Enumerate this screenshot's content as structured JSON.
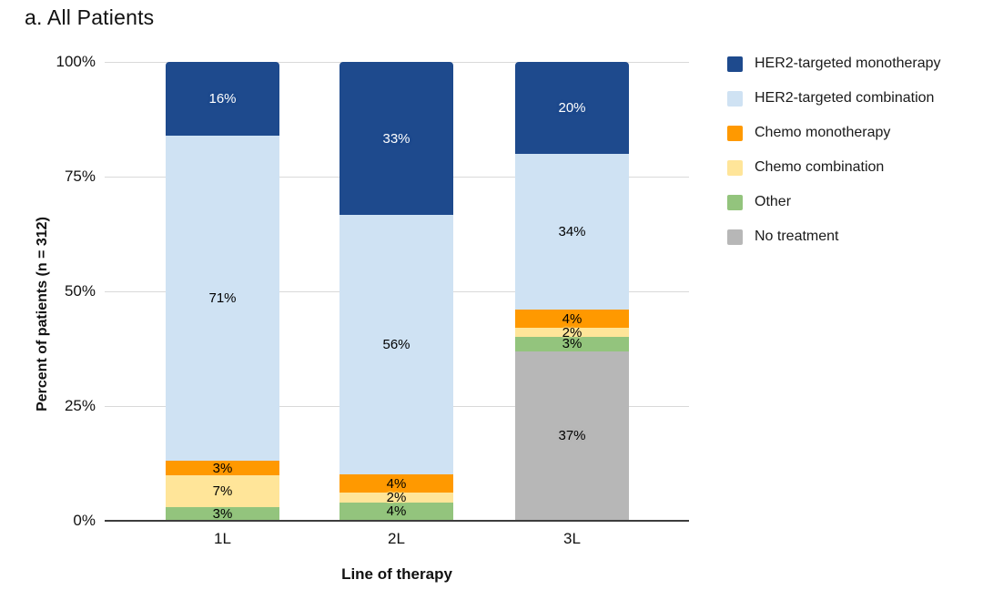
{
  "chart_data": {
    "type": "bar",
    "stacked": true,
    "title": "a. All Patients",
    "xlabel": "Line of therapy",
    "ylabel": "Percent of patients (n = 312)",
    "categories": [
      "1L",
      "2L",
      "3L"
    ],
    "series": [
      {
        "name": "HER2-targeted monotherapy",
        "color": "#1e4a8d",
        "label_color": "#ffffff",
        "values": [
          16,
          33,
          20
        ]
      },
      {
        "name": "HER2-targeted combination",
        "color": "#cfe2f3",
        "label_color": "#000000",
        "values": [
          71,
          56,
          34
        ]
      },
      {
        "name": "Chemo monotherapy",
        "color": "#ff9900",
        "label_color": "#000000",
        "values": [
          3,
          4,
          4
        ]
      },
      {
        "name": "Chemo combination",
        "color": "#ffe599",
        "label_color": "#000000",
        "values": [
          7,
          2,
          2
        ]
      },
      {
        "name": "Other",
        "color": "#93c47d",
        "label_color": "#000000",
        "values": [
          3,
          4,
          3
        ]
      },
      {
        "name": "No treatment",
        "color": "#b7b7b7",
        "label_color": "#000000",
        "values": [
          0,
          0,
          37
        ]
      }
    ],
    "value_suffix": "%",
    "ylim": [
      0,
      100
    ],
    "yticks": [
      {
        "value": 0,
        "label": "0%"
      },
      {
        "value": 25,
        "label": "25%"
      },
      {
        "value": 50,
        "label": "50%"
      },
      {
        "value": 75,
        "label": "75%"
      },
      {
        "value": 100,
        "label": "100%"
      }
    ],
    "grid": true,
    "legend_position": "right",
    "axis_colors": {
      "gridline": "#d9d9d9",
      "baseline": "#3d3d3d"
    }
  }
}
